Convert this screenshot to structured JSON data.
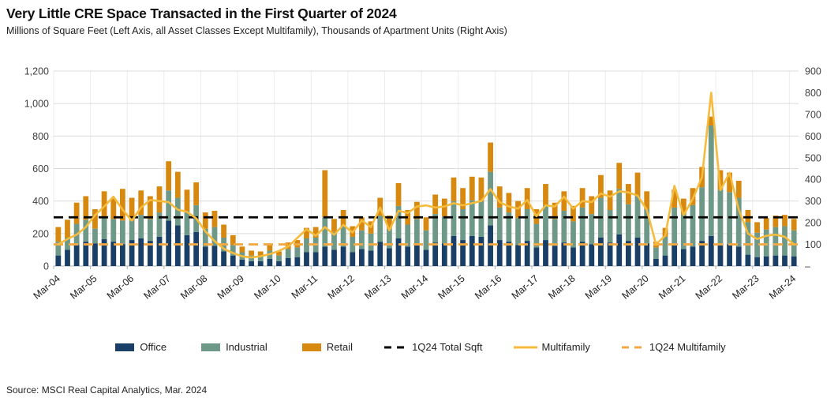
{
  "header": {
    "title": "Very Little CRE Space Transacted in the First Quarter of 2024",
    "subtitle": "Millions of Square Feet (Left Axis, all Asset Classes Except Multifamily), Thousands of Apartment Units (Right Axis)"
  },
  "source": "Source: MSCI Real Capital Analytics, Mar. 2024",
  "colors": {
    "office": "#1a3f66",
    "industrial": "#6e9887",
    "retail": "#d7880f",
    "multifamily_line": "#f5bb3d",
    "multifamily_dash": "#f2a944",
    "total_dash": "#000000",
    "grid": "#dcdcdc",
    "axis_line": "#b3b3b3",
    "axis_text": "#3f3f3f"
  },
  "chart_data": {
    "type": "bar",
    "subtype": "stacked-bars-with-lines",
    "title": "Very Little CRE Space Transacted in the First Quarter of 2024",
    "xlabel": "",
    "ylabel_left": "Millions of Square Feet",
    "ylabel_right": "Thousands of Apartment Units",
    "grid": "on",
    "legend_position": "bottom",
    "left_axis": {
      "range": [
        0,
        1200
      ],
      "ticks": [
        "1,200",
        "1,000",
        "800",
        "600",
        "400",
        "200",
        "0"
      ],
      "tick_values": [
        1200,
        1000,
        800,
        600,
        400,
        200,
        0
      ]
    },
    "right_axis": {
      "range": [
        0,
        900
      ],
      "ticks": [
        "900",
        "800",
        "700",
        "600",
        "500",
        "400",
        "300",
        "200",
        "100",
        "–"
      ],
      "tick_values": [
        900,
        800,
        700,
        600,
        500,
        400,
        300,
        200,
        100,
        0
      ]
    },
    "x_tick_labels": [
      "Mar-04",
      "Mar-05",
      "Mar-06",
      "Mar-07",
      "Mar-08",
      "Mar-09",
      "Mar-10",
      "Mar-11",
      "Mar-12",
      "Mar-13",
      "Mar-14",
      "Mar-15",
      "Mar-16",
      "Mar-17",
      "Mar-18",
      "Mar-19",
      "Mar-20",
      "Mar-21",
      "Mar-22",
      "Mar-23",
      "Mar-24"
    ],
    "quarters": [
      "Mar-04",
      "Jun-04",
      "Sep-04",
      "Dec-04",
      "Mar-05",
      "Jun-05",
      "Sep-05",
      "Dec-05",
      "Mar-06",
      "Jun-06",
      "Sep-06",
      "Dec-06",
      "Mar-07",
      "Jun-07",
      "Sep-07",
      "Dec-07",
      "Mar-08",
      "Jun-08",
      "Sep-08",
      "Dec-08",
      "Mar-09",
      "Jun-09",
      "Sep-09",
      "Dec-09",
      "Mar-10",
      "Jun-10",
      "Sep-10",
      "Dec-10",
      "Mar-11",
      "Jun-11",
      "Sep-11",
      "Dec-11",
      "Mar-12",
      "Jun-12",
      "Sep-12",
      "Dec-12",
      "Mar-13",
      "Jun-13",
      "Sep-13",
      "Dec-13",
      "Mar-14",
      "Jun-14",
      "Sep-14",
      "Dec-14",
      "Mar-15",
      "Jun-15",
      "Sep-15",
      "Dec-15",
      "Mar-16",
      "Jun-16",
      "Sep-16",
      "Dec-16",
      "Mar-17",
      "Jun-17",
      "Sep-17",
      "Dec-17",
      "Mar-18",
      "Jun-18",
      "Sep-18",
      "Dec-18",
      "Mar-19",
      "Jun-19",
      "Sep-19",
      "Dec-19",
      "Mar-20",
      "Jun-20",
      "Sep-20",
      "Dec-20",
      "Mar-21",
      "Jun-21",
      "Sep-21",
      "Dec-21",
      "Mar-22",
      "Jun-22",
      "Sep-22",
      "Dec-22",
      "Mar-23",
      "Jun-23",
      "Sep-23",
      "Dec-23",
      "Mar-24"
    ],
    "series": [
      {
        "name": "Office",
        "type": "bar-stack",
        "axis": "left",
        "values": [
          65,
          100,
          130,
          150,
          140,
          165,
          150,
          135,
          160,
          170,
          155,
          180,
          280,
          250,
          190,
          210,
          120,
          125,
          90,
          65,
          40,
          30,
          30,
          45,
          30,
          50,
          55,
          85,
          85,
          120,
          100,
          120,
          85,
          105,
          95,
          150,
          110,
          170,
          120,
          135,
          100,
          145,
          140,
          185,
          160,
          185,
          180,
          250,
          160,
          150,
          130,
          155,
          115,
          160,
          125,
          145,
          115,
          150,
          135,
          175,
          145,
          195,
          155,
          175,
          140,
          45,
          65,
          130,
          105,
          120,
          155,
          185,
          140,
          135,
          120,
          70,
          55,
          60,
          65,
          65,
          60
        ]
      },
      {
        "name": "Industrial",
        "type": "bar-stack",
        "axis": "left",
        "values": [
          85,
          75,
          130,
          135,
          90,
          140,
          140,
          145,
          120,
          145,
          135,
          150,
          185,
          170,
          150,
          165,
          110,
          115,
          85,
          65,
          45,
          35,
          32,
          50,
          35,
          55,
          60,
          85,
          90,
          180,
          110,
          130,
          95,
          115,
          105,
          160,
          120,
          200,
          135,
          155,
          120,
          175,
          165,
          215,
          190,
          220,
          220,
          330,
          200,
          180,
          165,
          195,
          145,
          215,
          165,
          195,
          160,
          210,
          185,
          245,
          200,
          280,
          225,
          255,
          210,
          70,
          115,
          230,
          215,
          255,
          330,
          680,
          330,
          320,
          300,
          200,
          150,
          165,
          175,
          180,
          160
        ]
      },
      {
        "name": "Retail",
        "type": "bar-stack",
        "axis": "left",
        "values": [
          90,
          110,
          130,
          145,
          120,
          155,
          125,
          195,
          140,
          150,
          140,
          160,
          180,
          160,
          130,
          140,
          100,
          100,
          80,
          60,
          35,
          30,
          28,
          40,
          25,
          40,
          45,
          65,
          65,
          290,
          80,
          95,
          65,
          80,
          75,
          110,
          80,
          140,
          90,
          105,
          80,
          120,
          110,
          145,
          130,
          145,
          145,
          180,
          130,
          120,
          105,
          130,
          90,
          130,
          100,
          120,
          95,
          120,
          110,
          140,
          120,
          160,
          125,
          145,
          110,
          35,
          55,
          110,
          95,
          105,
          125,
          55,
          120,
          120,
          105,
          75,
          65,
          70,
          70,
          70,
          70
        ]
      },
      {
        "name": "Multifamily",
        "type": "line",
        "axis": "right",
        "values": [
          100,
          125,
          145,
          180,
          235,
          275,
          320,
          260,
          210,
          270,
          305,
          300,
          295,
          260,
          250,
          220,
          160,
          115,
          80,
          60,
          45,
          40,
          45,
          55,
          70,
          90,
          130,
          170,
          140,
          180,
          145,
          190,
          155,
          210,
          180,
          270,
          165,
          255,
          245,
          275,
          280,
          270,
          275,
          290,
          280,
          290,
          300,
          355,
          295,
          275,
          265,
          305,
          230,
          280,
          275,
          320,
          265,
          300,
          295,
          335,
          320,
          345,
          340,
          325,
          260,
          100,
          140,
          370,
          235,
          310,
          410,
          800,
          350,
          430,
          260,
          150,
          125,
          140,
          145,
          135,
          100
        ]
      }
    ],
    "reference_lines": [
      {
        "name": "1Q24 Total Sqft",
        "axis": "left",
        "value": 300,
        "style": "dashed",
        "color": "#000000"
      },
      {
        "name": "1Q24 Multifamily",
        "axis": "right",
        "value": 100,
        "style": "dashed",
        "color": "#f2a944"
      }
    ],
    "legend": [
      {
        "label": "Office",
        "swatch": "rect",
        "color": "#1a3f66"
      },
      {
        "label": "Industrial",
        "swatch": "rect",
        "color": "#6e9887"
      },
      {
        "label": "Retail",
        "swatch": "rect",
        "color": "#d7880f"
      },
      {
        "label": "1Q24 Total Sqft",
        "swatch": "dash",
        "color": "#000000"
      },
      {
        "label": "Multifamily",
        "swatch": "line",
        "color": "#f5bb3d"
      },
      {
        "label": "1Q24 Multifamily",
        "swatch": "dash",
        "color": "#f2a944"
      }
    ]
  }
}
